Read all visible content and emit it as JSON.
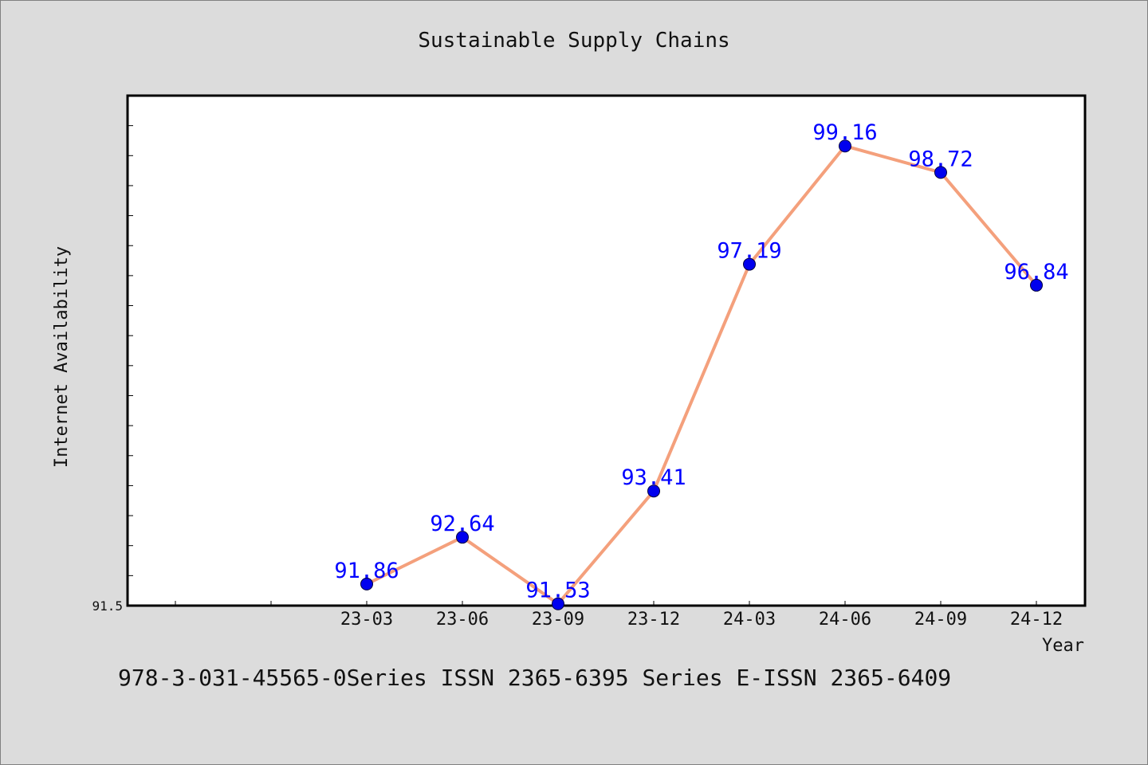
{
  "chart_data": {
    "type": "line",
    "title": "Sustainable Supply Chains",
    "xlabel": "Year",
    "ylabel": "Internet Availability",
    "categories": [
      "23-03",
      "23-06",
      "23-09",
      "23-12",
      "24-03",
      "24-06",
      "24-09",
      "24-12"
    ],
    "values": [
      91.86,
      92.64,
      91.53,
      93.41,
      97.19,
      99.16,
      98.72,
      96.84
    ],
    "data_labels": [
      "91.86",
      "92.64",
      "91.53",
      "93.41",
      "97.19",
      "99.16",
      "98.72",
      "96.84"
    ],
    "ylim": [
      91.5,
      100.0
    ],
    "y_tick_label_shown": "91.5",
    "grid": false,
    "legend": "none",
    "line_color": "#f4a07c",
    "marker_color": "#0000ee",
    "label_color": "#0000ff"
  },
  "footer": "978-3-031-45565-0Series ISSN 2365-6395 Series E-ISSN 2365-6409"
}
